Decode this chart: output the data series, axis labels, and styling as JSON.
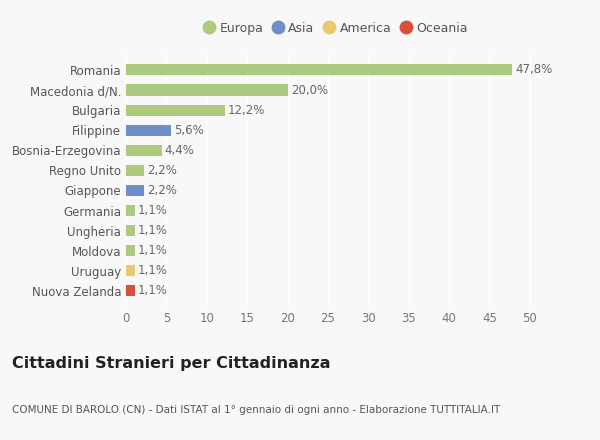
{
  "categories": [
    "Romania",
    "Macedonia d/N.",
    "Bulgaria",
    "Filippine",
    "Bosnia-Erzegovina",
    "Regno Unito",
    "Giappone",
    "Germania",
    "Ungheria",
    "Moldova",
    "Uruguay",
    "Nuova Zelanda"
  ],
  "values": [
    47.8,
    20.0,
    12.2,
    5.6,
    4.4,
    2.2,
    2.2,
    1.1,
    1.1,
    1.1,
    1.1,
    1.1
  ],
  "labels": [
    "47,8%",
    "20,0%",
    "12,2%",
    "5,6%",
    "4,4%",
    "2,2%",
    "2,2%",
    "1,1%",
    "1,1%",
    "1,1%",
    "1,1%",
    "1,1%"
  ],
  "colors": [
    "#adc97e",
    "#adc97e",
    "#adc97e",
    "#6e8fc7",
    "#adc97e",
    "#adc97e",
    "#6e8fc7",
    "#adc97e",
    "#adc97e",
    "#adc97e",
    "#e8c96e",
    "#d94f3d"
  ],
  "continent_colors": {
    "Europa": "#adc97e",
    "Asia": "#6e8fc7",
    "America": "#e8c96e",
    "Oceania": "#d94f3d"
  },
  "xlim": [
    0,
    52
  ],
  "xticks": [
    0,
    5,
    10,
    15,
    20,
    25,
    30,
    35,
    40,
    45,
    50
  ],
  "title": "Cittadini Stranieri per Cittadinanza",
  "subtitle": "COMUNE DI BAROLO (CN) - Dati ISTAT al 1° gennaio di ogni anno - Elaborazione TUTTITALIA.IT",
  "background_color": "#f8f8f8",
  "bar_height": 0.55,
  "label_fontsize": 8.5,
  "tick_fontsize": 8.5,
  "title_fontsize": 11.5,
  "subtitle_fontsize": 7.5
}
